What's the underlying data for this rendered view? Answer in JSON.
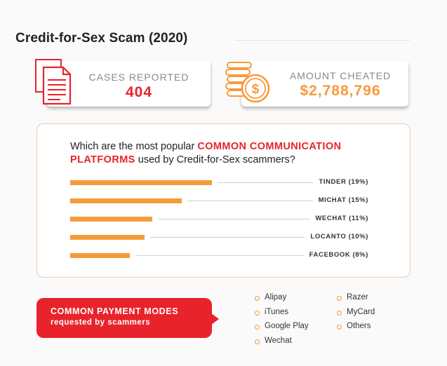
{
  "title": "Credit-for-Sex Scam (2020)",
  "stats": {
    "cases": {
      "label": "CASES REPORTED",
      "value": "404",
      "color": "#e8232b",
      "icon": "document-icon"
    },
    "amount": {
      "label": "AMOUNT CHEATED",
      "value": "$2,788,796",
      "color": "#f79a3b",
      "icon": "coin-stack-icon"
    }
  },
  "question": {
    "part1": "Which are the most popular ",
    "highlight": "COMMON COMMUNICATION PLATFORMS",
    "part2": " used by Credit-for-Sex scammers?"
  },
  "chart_data": {
    "type": "bar",
    "orientation": "horizontal",
    "categories": [
      "TINDER",
      "MICHAT",
      "WECHAT",
      "LOCANTO",
      "FACEBOOK"
    ],
    "values": [
      19,
      15,
      11,
      10,
      8
    ],
    "labels": [
      "TINDER (19%)",
      "MICHAT (15%)",
      "WECHAT (11%)",
      "LOCANTO (10%)",
      "FACEBOOK (8%)"
    ],
    "unit": "%",
    "bar_color": "#f79a3b",
    "xlim": [
      0,
      40
    ],
    "grid": false,
    "legend": "none"
  },
  "payment": {
    "title": "COMMON PAYMENT MODES",
    "subtitle": "requested by scammers",
    "col1": [
      "Alipay",
      "iTunes",
      "Google Play",
      "Wechat"
    ],
    "col2": [
      "Razer",
      "MyCard",
      "Others"
    ],
    "accent": "#e8232b"
  }
}
